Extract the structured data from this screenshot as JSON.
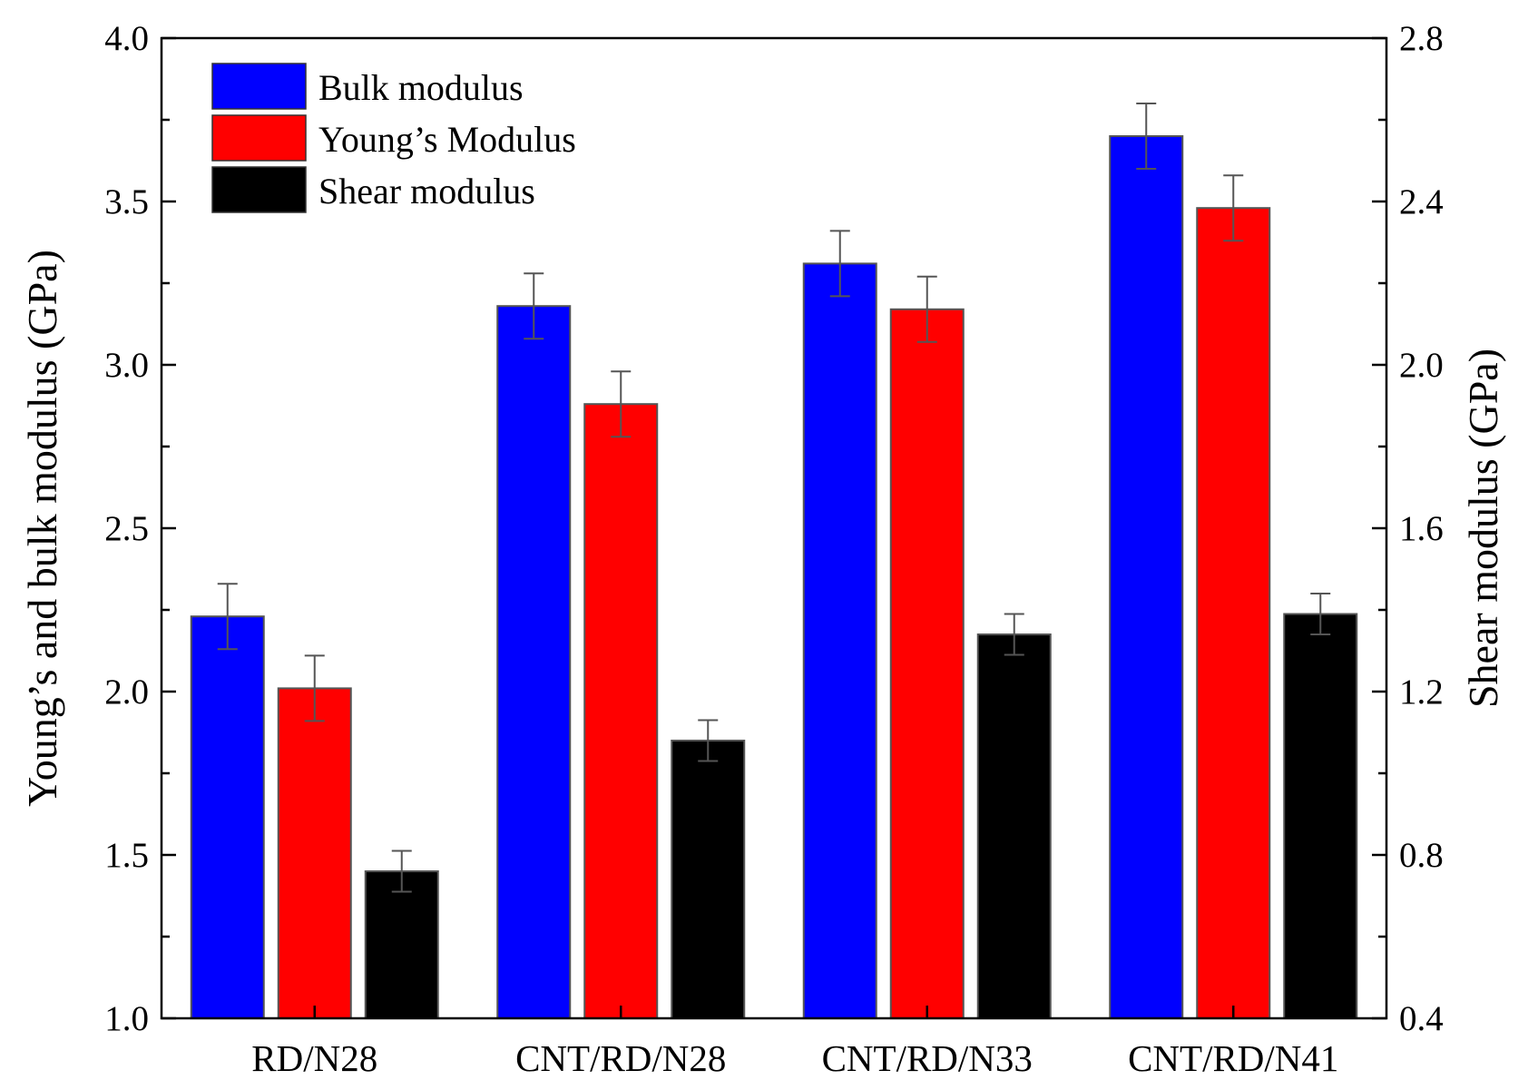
{
  "chart_data": {
    "type": "bar",
    "title": "",
    "categories": [
      "RD/N28",
      "CNT/RD/N28",
      "CNT/RD/N33",
      "CNT/RD/N41"
    ],
    "ylabel": "Young’s and bulk modulus (GPa)",
    "y2label": "Shear modulus (GPa)",
    "xlabel": "",
    "ylim": [
      1.0,
      4.0
    ],
    "yticks": [
      "1.0",
      "1.5",
      "2.0",
      "2.5",
      "3.0",
      "3.5",
      "4.0"
    ],
    "y2lim": [
      0.4,
      2.8
    ],
    "y2ticks": [
      "0.4",
      "0.8",
      "1.2",
      "1.6",
      "2.0",
      "2.4",
      "2.8"
    ],
    "legend_position": "top-left",
    "series": [
      {
        "name": "Bulk modulus",
        "axis": "left",
        "color": "#0000ff",
        "values": [
          2.23,
          3.18,
          3.31,
          3.7
        ],
        "errors": [
          0.1,
          0.1,
          0.1,
          0.1
        ]
      },
      {
        "name": "Young’s Modulus",
        "axis": "left",
        "color": "#ff0000",
        "values": [
          2.01,
          2.88,
          3.17,
          3.48
        ],
        "errors": [
          0.1,
          0.1,
          0.1,
          0.1
        ]
      },
      {
        "name": "Shear modulus",
        "axis": "right",
        "color": "#000000",
        "values": [
          0.76,
          1.08,
          1.34,
          1.39
        ],
        "errors": [
          0.05,
          0.05,
          0.05,
          0.05
        ]
      }
    ]
  }
}
